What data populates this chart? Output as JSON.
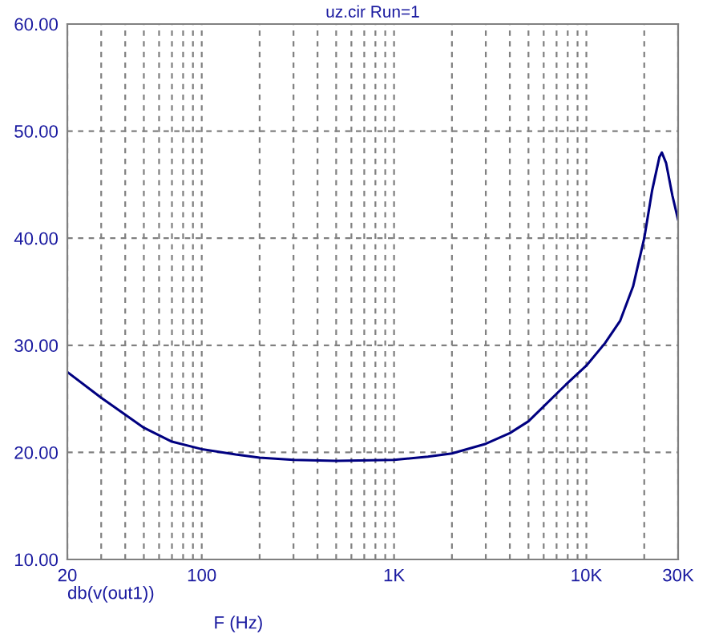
{
  "chart_data": {
    "type": "line",
    "title": "uz.cir Run=1",
    "xlabel": "F (Hz)",
    "annotations": [
      "db(v(out1))"
    ],
    "log": "x",
    "grid": true,
    "legend": false,
    "marker": "none",
    "line_style": "solid",
    "xlim": [
      20,
      30000
    ],
    "ylim": [
      10,
      60
    ],
    "xticks": [
      20,
      {
        "value": 30,
        "label": null
      },
      {
        "value": 40,
        "label": null
      },
      {
        "value": 50,
        "label": null
      },
      {
        "value": 60,
        "label": null
      },
      {
        "value": 70,
        "label": null
      },
      {
        "value": 80,
        "label": null
      },
      {
        "value": 90,
        "label": null
      },
      100,
      {
        "value": 200,
        "label": null
      },
      {
        "value": 300,
        "label": null
      },
      {
        "value": 400,
        "label": null
      },
      {
        "value": 500,
        "label": null
      },
      {
        "value": 600,
        "label": null
      },
      {
        "value": 700,
        "label": null
      },
      {
        "value": 800,
        "label": null
      },
      {
        "value": 900,
        "label": null
      },
      {
        "value": 1000,
        "label": "1K"
      },
      {
        "value": 2000,
        "label": null
      },
      {
        "value": 3000,
        "label": null
      },
      {
        "value": 4000,
        "label": null
      },
      {
        "value": 5000,
        "label": null
      },
      {
        "value": 6000,
        "label": null
      },
      {
        "value": 7000,
        "label": null
      },
      {
        "value": 8000,
        "label": null
      },
      {
        "value": 9000,
        "label": null
      },
      {
        "value": 10000,
        "label": "10K"
      },
      {
        "value": 20000,
        "label": null
      },
      {
        "value": 30000,
        "label": "30K"
      }
    ],
    "yticks": [
      {
        "value": 10,
        "label": "10.00"
      },
      {
        "value": 20,
        "label": "20.00"
      },
      {
        "value": 30,
        "label": "30.00"
      },
      {
        "value": 40,
        "label": "40.00"
      },
      {
        "value": 50,
        "label": "50.00"
      },
      {
        "value": 60,
        "label": "60.00"
      }
    ],
    "series": [
      {
        "color": "#000080",
        "x": [
          20,
          30,
          50,
          70,
          100,
          150,
          200,
          300,
          500,
          1000,
          1500,
          2000,
          3000,
          4000,
          5000,
          7800,
          10000,
          12500,
          15000,
          17500,
          20000,
          22000,
          24000,
          24700,
          26000,
          28000,
          30000
        ],
        "values": [
          27.5,
          25.1,
          22.3,
          21.0,
          20.3,
          19.8,
          19.5,
          19.3,
          19.2,
          19.3,
          19.6,
          19.9,
          20.8,
          21.8,
          22.9,
          26.3,
          28.1,
          30.2,
          32.3,
          35.5,
          40.0,
          44.5,
          47.6,
          48.0,
          47.0,
          44.0,
          41.7
        ]
      }
    ]
  }
}
